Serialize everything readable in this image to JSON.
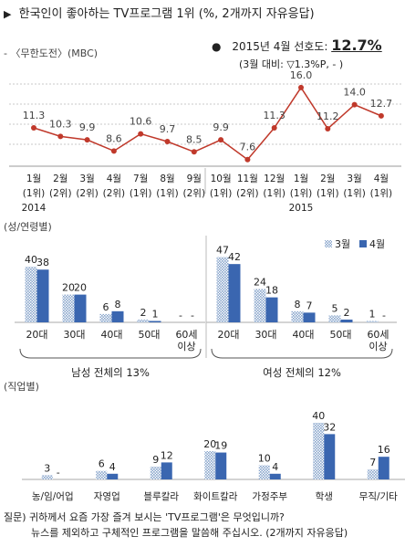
{
  "header": {
    "title": "한국인이 좋아하는 TV프로그램 1위",
    "note": "(%, 2개까지 자유응답)"
  },
  "stat": {
    "label": "2015년 4월 선호도:",
    "value": "12.7%",
    "sub": "(3월 대비: ▽1.3%P, - )"
  },
  "series_legend": "- 〈무한도전〉(MBC)",
  "section_labels": {
    "gender_age": "(성/연령별)",
    "occupation": "(직업별)"
  },
  "legend": {
    "march": "3월",
    "april": "4월"
  },
  "colors": {
    "march": "#8aa6cc",
    "april": "#3a66b0",
    "line": "#c0392b"
  },
  "male_total": "남성 전체의 13%",
  "female_total": "여성 전체의 12%",
  "footer": {
    "line1": "질문) 귀하께서 요즘 가장 즐겨 보시는 'TV프로그램'은 무엇입니까?",
    "line2": "뉴스를 제외하고 구체적인 프로그램을 말씀해 주십시오. (2개까지 자유응답)"
  },
  "chart_data": [
    {
      "type": "line",
      "categories": [
        [
          "1월",
          "(1위)",
          "2014"
        ],
        [
          "2월",
          "(2위)",
          ""
        ],
        [
          "3월",
          "(2위)",
          ""
        ],
        [
          "4월",
          "(2위)",
          ""
        ],
        [
          "7월",
          "(1위)",
          ""
        ],
        [
          "8월",
          "(1위)",
          ""
        ],
        [
          "9월",
          "(2위)",
          ""
        ],
        [
          "10월",
          "(1위)",
          ""
        ],
        [
          "11월",
          "(2위)",
          ""
        ],
        [
          "12월",
          "(1위)",
          ""
        ],
        [
          "1월",
          "(1위)",
          "2015"
        ],
        [
          "2월",
          "(1위)",
          ""
        ],
        [
          "3월",
          "(1위)",
          ""
        ],
        [
          "4월",
          "(1위)",
          ""
        ]
      ],
      "values": [
        11.3,
        10.3,
        9.9,
        8.6,
        10.6,
        9.7,
        8.5,
        9.9,
        7.6,
        11.3,
        16.0,
        11.2,
        14.0,
        12.7
      ],
      "labels": [
        "11.3",
        "10.3",
        "9.9",
        "8.6",
        "10.6",
        "9.7",
        "8.5",
        "9.9",
        "7.6",
        "11.3",
        "16.0",
        "11.2",
        "14.0",
        "12.7"
      ],
      "ylim": [
        5,
        18
      ],
      "grid": true
    },
    {
      "type": "bar",
      "title": "",
      "categories": [
        "20대",
        "30대",
        "40대",
        "50대",
        "60세 이상"
      ],
      "series": [
        {
          "name": "3월",
          "values": [
            40,
            20,
            6,
            2,
            null
          ],
          "labels": [
            "40",
            "20",
            "6",
            "2",
            "-"
          ]
        },
        {
          "name": "4월",
          "values": [
            38,
            20,
            8,
            1,
            null
          ],
          "labels": [
            "38",
            "20",
            "8",
            "1",
            "-"
          ]
        }
      ],
      "ylim": [
        0,
        50
      ]
    },
    {
      "type": "bar",
      "title": "",
      "categories": [
        "20대",
        "30대",
        "40대",
        "50대",
        "60세 이상"
      ],
      "series": [
        {
          "name": "3월",
          "values": [
            47,
            24,
            8,
            5,
            1
          ],
          "labels": [
            "47",
            "24",
            "8",
            "5",
            "1"
          ]
        },
        {
          "name": "4월",
          "values": [
            42,
            18,
            7,
            2,
            null
          ],
          "labels": [
            "42",
            "18",
            "7",
            "2",
            "-"
          ]
        }
      ],
      "ylim": [
        0,
        50
      ]
    },
    {
      "type": "bar",
      "categories": [
        "농/임/어업",
        "자영업",
        "블루칼라",
        "화이트칼라",
        "가정주부",
        "학생",
        "무직/기타"
      ],
      "series": [
        {
          "name": "3월",
          "values": [
            3,
            6,
            9,
            20,
            10,
            40,
            7
          ],
          "labels": [
            "3",
            "6",
            "9",
            "20",
            "10",
            "40",
            "7"
          ]
        },
        {
          "name": "4월",
          "values": [
            null,
            4,
            12,
            19,
            4,
            32,
            16
          ],
          "labels": [
            "-",
            "4",
            "12",
            "19",
            "4",
            "32",
            "16"
          ]
        }
      ],
      "ylim": [
        0,
        45
      ]
    }
  ]
}
